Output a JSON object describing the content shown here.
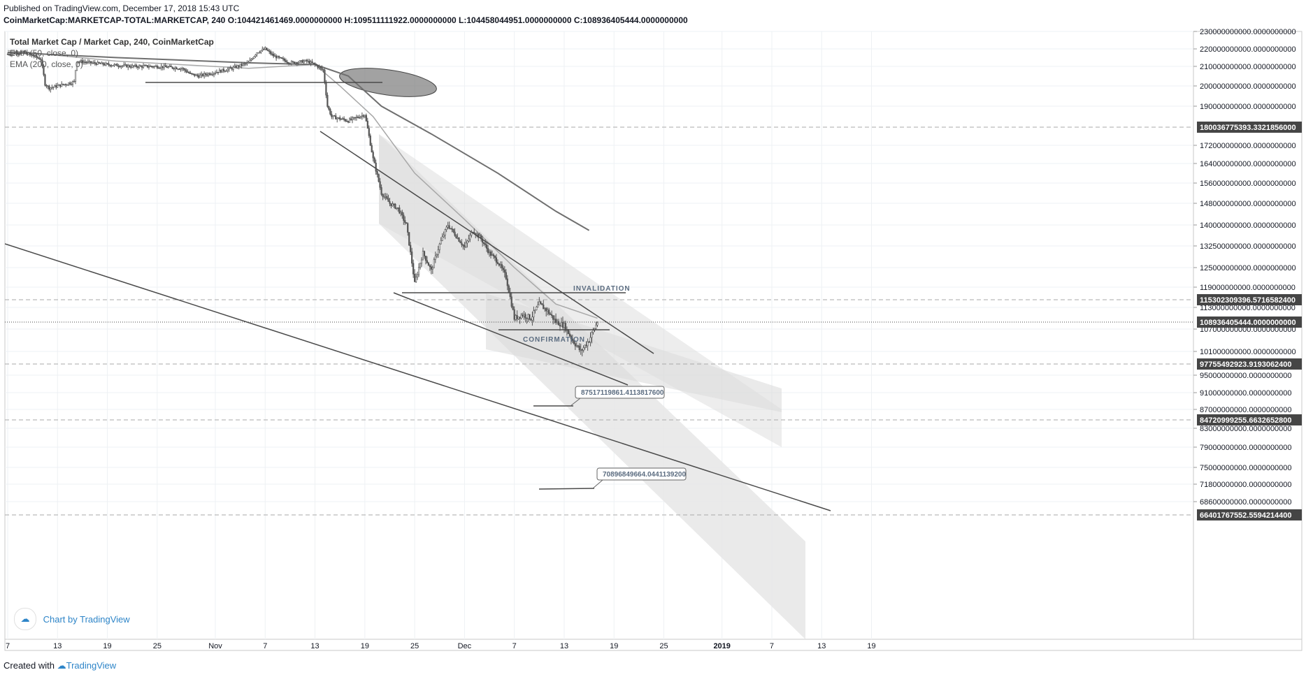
{
  "header": {
    "published": "Published on TradingView.com, December 17, 2018 15:43 UTC",
    "symbol_line": "CoinMarketCap:MARKETCAP-TOTAL:MARKETCAP, 240",
    "ohlc": "O:104421461469.0000000000 H:109511111922.0000000000 L:104458044951.0000000000 C:108936405444.0000000000"
  },
  "legend": {
    "title": "Total Market Cap / Market Cap, 240, CoinMarketCap",
    "ema50": "EMA (50, close, 0)",
    "ema200": "EMA (200, close, 0)"
  },
  "watermark": "Chart by TradingView",
  "footer": {
    "created": "Created with",
    "brand": "TradingView"
  },
  "colors": {
    "candle": "#555555",
    "ema50": "#a8a8a8",
    "ema200": "#6f6f6f",
    "trendline": "#4a4a4a",
    "channel_fill": "#e6e6e6",
    "price_label_bg": "#454545",
    "annotation_text": "#5b6c80"
  },
  "chart_data": {
    "type": "candlestick",
    "title": "Total Market Cap / Market Cap, 240, CoinMarketCap",
    "x_axis": {
      "ticks": [
        "7",
        "13",
        "19",
        "25",
        "Nov",
        "7",
        "13",
        "19",
        "25",
        "Dec",
        "7",
        "13",
        "19",
        "25",
        "2019",
        "7",
        "13",
        "19"
      ],
      "range": [
        "2018-10-07",
        "2019-01-20"
      ]
    },
    "y_axis": {
      "tick_labels": [
        "230000000000.0000000000",
        "220000000000.0000000000",
        "210000000000.0000000000",
        "200000000000.0000000000",
        "190000000000.0000000000",
        "172000000000.0000000000",
        "164000000000.0000000000",
        "156000000000.0000000000",
        "148000000000.0000000000",
        "140000000000.0000000000",
        "132500000000.0000000000",
        "125000000000.0000000000",
        "119000000000.0000000000",
        "113000000000.0000000000",
        "107000000000.0000000000",
        "101000000000.0000000000",
        "95000000000.0000000000",
        "91000000000.0000000000",
        "87000000000.0000000000",
        "83000000000.0000000000",
        "79000000000.0000000000",
        "75000000000.0000000000",
        "71800000000.0000000000",
        "68600000000.0000000000"
      ],
      "scale": "log"
    },
    "price_labels": [
      {
        "value": "180036775393.3321856000",
        "style": "dashed"
      },
      {
        "value": "115302309396.5716582400",
        "style": "dashed"
      },
      {
        "value": "108936405444.0000000000",
        "style": "dotted",
        "current": true
      },
      {
        "value": "97755492923.9193062400",
        "style": "dashed"
      },
      {
        "value": "84720999255.6632652800",
        "style": "dashed"
      },
      {
        "value": "66401767552.5594214400",
        "style": "dashed"
      }
    ],
    "close_path": [
      [
        "2018-10-07",
        217
      ],
      [
        "2018-10-09",
        218
      ],
      [
        "2018-10-11",
        214
      ],
      [
        "2018-10-11.5",
        201
      ],
      [
        "2018-10-12",
        199
      ],
      [
        "2018-10-13",
        200
      ],
      [
        "2018-10-14",
        201
      ],
      [
        "2018-10-15",
        202
      ],
      [
        "2018-10-15.3",
        213
      ],
      [
        "2018-10-17",
        212
      ],
      [
        "2018-10-19",
        211
      ],
      [
        "2018-10-22",
        210
      ],
      [
        "2018-10-25",
        210
      ],
      [
        "2018-10-28",
        209
      ],
      [
        "2018-10-29",
        206
      ],
      [
        "2018-10-30",
        205
      ],
      [
        "2018-11-01",
        207
      ],
      [
        "2018-11-03",
        209
      ],
      [
        "2018-11-05",
        212
      ],
      [
        "2018-11-06",
        218
      ],
      [
        "2018-11-07",
        220
      ],
      [
        "2018-11-08",
        216
      ],
      [
        "2018-11-10",
        212
      ],
      [
        "2018-11-12",
        213
      ],
      [
        "2018-11-13",
        211
      ],
      [
        "2018-11-14",
        208
      ],
      [
        "2018-11-14.5",
        190
      ],
      [
        "2018-11-15",
        185
      ],
      [
        "2018-11-17",
        183
      ],
      [
        "2018-11-19",
        186
      ],
      [
        "2018-11-20",
        166
      ],
      [
        "2018-11-21",
        152
      ],
      [
        "2018-11-22",
        148
      ],
      [
        "2018-11-23",
        146
      ],
      [
        "2018-11-24",
        140
      ],
      [
        "2018-11-25",
        120
      ],
      [
        "2018-11-26",
        130
      ],
      [
        "2018-11-27",
        124
      ],
      [
        "2018-11-28",
        133
      ],
      [
        "2018-11-29",
        140
      ],
      [
        "2018-11-30",
        136
      ],
      [
        "2018-12-01",
        132
      ],
      [
        "2018-12-02",
        138
      ],
      [
        "2018-12-03",
        135
      ],
      [
        "2018-12-04",
        130
      ],
      [
        "2018-12-05",
        127
      ],
      [
        "2018-12-06",
        122
      ],
      [
        "2018-12-07",
        110
      ],
      [
        "2018-12-08",
        111
      ],
      [
        "2018-12-09",
        110
      ],
      [
        "2018-12-10",
        114
      ],
      [
        "2018-12-11",
        112
      ],
      [
        "2018-12-12",
        109
      ],
      [
        "2018-12-13",
        108
      ],
      [
        "2018-12-14",
        104
      ],
      [
        "2018-12-15",
        101
      ],
      [
        "2018-12-16",
        104
      ],
      [
        "2018-12-17",
        108.9
      ]
    ],
    "series": [
      {
        "name": "EMA (50, close, 0)",
        "values": [
          [
            "2018-10-07",
            219
          ],
          [
            "2018-10-20",
            213
          ],
          [
            "2018-11-05",
            209
          ],
          [
            "2018-11-13",
            211
          ],
          [
            "2018-11-16",
            200
          ],
          [
            "2018-11-20",
            185
          ],
          [
            "2018-11-25",
            160
          ],
          [
            "2018-12-01",
            142
          ],
          [
            "2018-12-07",
            125
          ],
          [
            "2018-12-12",
            114
          ],
          [
            "2018-12-17",
            110
          ]
        ]
      },
      {
        "name": "EMA (200, close, 0)",
        "values": [
          [
            "2018-10-07",
            218
          ],
          [
            "2018-10-20",
            215
          ],
          [
            "2018-11-05",
            212
          ],
          [
            "2018-11-13",
            211
          ],
          [
            "2018-11-17",
            205
          ],
          [
            "2018-11-21",
            190
          ],
          [
            "2018-11-27",
            177
          ],
          [
            "2018-12-05",
            160
          ],
          [
            "2018-12-12",
            145
          ],
          [
            "2018-12-16",
            138
          ]
        ]
      }
    ],
    "annotations": [
      {
        "text": "INVALIDATION",
        "value": 116000000000
      },
      {
        "text": "CONFIRMATION",
        "value": 107000000000
      },
      {
        "text": "87517119861.4113817600"
      },
      {
        "text": "70896849664.0441139200"
      }
    ]
  }
}
